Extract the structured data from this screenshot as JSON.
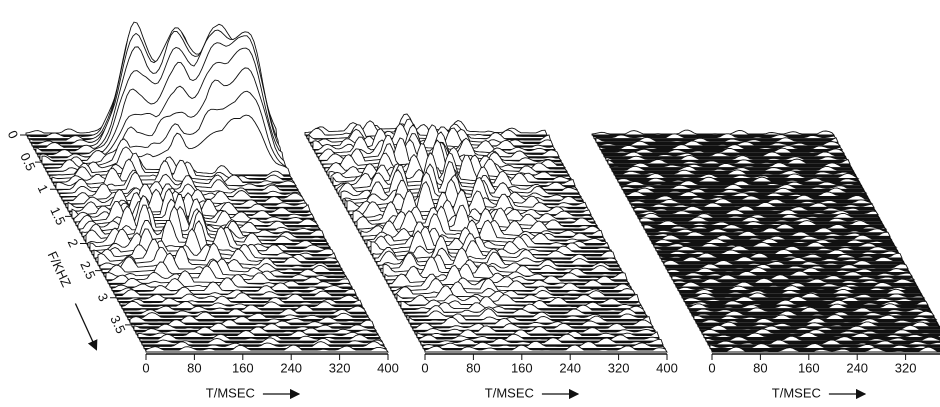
{
  "chart_data": [
    {
      "type": "waterfall3d",
      "x_label": "T/MSEC",
      "y_label": "F/KHZ",
      "xlim": [
        0,
        400
      ],
      "xticks": [
        0,
        80,
        160,
        240,
        320,
        400
      ],
      "ylim": [
        0,
        4
      ],
      "yticks": [
        0,
        0.5,
        1,
        1.5,
        2,
        2.5,
        3,
        3.5
      ]
    },
    {
      "type": "waterfall3d",
      "x_label": "T/MSEC",
      "xlim": [
        0,
        400
      ],
      "xticks": [
        0,
        80,
        160,
        240,
        320,
        400
      ],
      "ylim": [
        0,
        4
      ]
    },
    {
      "type": "waterfall3d",
      "x_label": "T/MSEC",
      "xlim": [
        0,
        400
      ],
      "xticks": [
        0,
        80,
        160,
        240,
        320
      ],
      "ylim": [
        0,
        4
      ]
    }
  ]
}
